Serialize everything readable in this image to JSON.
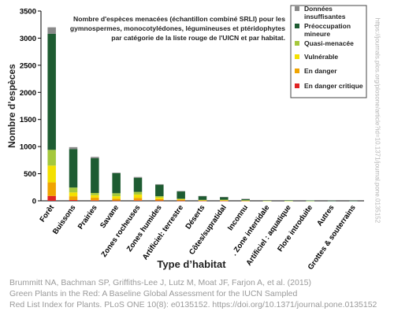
{
  "chart_data": {
    "type": "bar",
    "stacked": true,
    "title": "Nombre d'espèces  menacées  (échantillon combiné SRLI)  pour les gymnospermes, monocotylédones, légumineuses et ptéridophytes par catégorie de la liste rouge de l'UICN et par habitat.",
    "title_lines": [
      "Nombre d'espèces  menacées  (échantillon combiné SRLI)  pour les",
      "gymnospermes, monocotylédones, légumineuses et ptéridophytes",
      "par catégorie de la liste rouge de l'UICN et par habitat."
    ],
    "xlabel": "Type d’habitat",
    "ylabel": "Nombre d’espèces",
    "ylim": [
      0,
      3500
    ],
    "yticks": [
      "0",
      "500",
      "1000",
      "1500",
      "2000",
      "2500",
      "3000",
      "3500"
    ],
    "grid": false,
    "legend_position": "top-right",
    "categories": [
      "Forêt",
      "Buissons",
      "Prairies",
      "Savane",
      "Zones rocheuses",
      "Zones humides",
      "Artificiel: terrestre",
      "Déserts",
      "Côtes/supratidal",
      "Inconnu",
      ". Zone intertidale",
      "Artificiel : aquatique",
      "Flore introduite",
      "Autres",
      "Grottes & souterrains"
    ],
    "series": [
      {
        "name": "En danger critique",
        "color": "#e02424",
        "values": [
          90,
          15,
          10,
          5,
          10,
          6,
          4,
          2,
          2,
          1,
          0,
          0,
          0,
          0,
          0
        ]
      },
      {
        "name": "En danger",
        "color": "#f0a400",
        "values": [
          250,
          70,
          50,
          35,
          45,
          25,
          15,
          5,
          5,
          3,
          1,
          1,
          0,
          0,
          0
        ]
      },
      {
        "name": "Vulnérable",
        "color": "#f4e000",
        "values": [
          310,
          70,
          45,
          45,
          60,
          30,
          10,
          5,
          5,
          2,
          1,
          1,
          0,
          0,
          0
        ]
      },
      {
        "name": "Quasi-menacée",
        "color": "#a5c83c",
        "values": [
          290,
          90,
          40,
          55,
          50,
          25,
          10,
          5,
          8,
          4,
          1,
          1,
          1,
          0,
          0
        ]
      },
      {
        "name": "Préoccupation mineure",
        "color": "#1e5c32",
        "values": [
          2140,
          710,
          640,
          370,
          260,
          210,
          135,
          70,
          50,
          25,
          8,
          7,
          6,
          3,
          2
        ]
      },
      {
        "name": "Données insuffisantes",
        "color": "#8a8a8a",
        "values": [
          120,
          35,
          25,
          10,
          15,
          10,
          6,
          3,
          2,
          2,
          1,
          0,
          0,
          0,
          0
        ]
      }
    ]
  },
  "caption": {
    "line1": "Brummitt NA, Bachman SP, Griffiths-Lee J, Lutz M, Moat JF, Farjon A, et al. (2015)",
    "line2": "Green Plants in the Red: A Baseline Global Assessment for the IUCN Sampled",
    "line3": "Red List Index for Plants. PLoS ONE 10(8): e0135152. https://doi.org/10.1371/journal.pone.0135152"
  },
  "watermark": "https://journals.plos.org/plosone/article?id=10.1371/journal.pone.0135152"
}
